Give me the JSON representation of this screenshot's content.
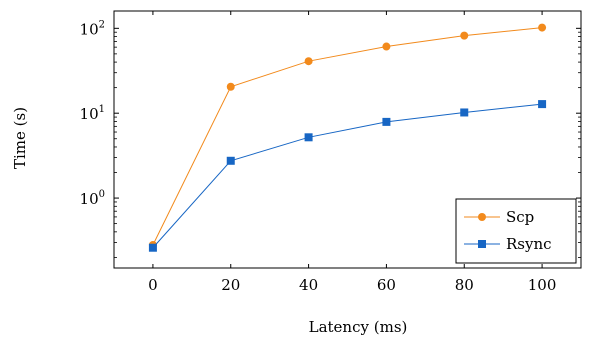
{
  "chart_data": {
    "type": "line",
    "xlabel": "Latency (ms)",
    "ylabel": "Time (s)",
    "x": [
      0,
      20,
      40,
      60,
      80,
      100
    ],
    "x_ticks": [
      "0",
      "20",
      "40",
      "60",
      "80",
      "100"
    ],
    "y_scale": "log",
    "y_ticks": [
      {
        "value": 1,
        "base": "10",
        "exp": "0"
      },
      {
        "value": 10,
        "base": "10",
        "exp": "1"
      },
      {
        "value": 100,
        "base": "10",
        "exp": "2"
      }
    ],
    "xlim": [
      -10,
      110
    ],
    "ylim": [
      0.15,
      160
    ],
    "grid": false,
    "legend_position": "bottom-right",
    "series": [
      {
        "name": "Scp",
        "color": "#f28a1c",
        "marker": "circle",
        "values": [
          0.28,
          20.5,
          41,
          61,
          82,
          102
        ]
      },
      {
        "name": "Rsync",
        "color": "#1766c4",
        "marker": "square",
        "values": [
          0.26,
          2.75,
          5.2,
          7.9,
          10.2,
          12.8
        ]
      }
    ]
  }
}
